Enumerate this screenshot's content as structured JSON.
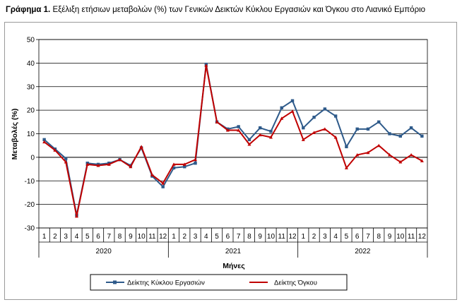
{
  "title": {
    "prefix": "Γράφημα 1.",
    "text": "Εξέλιξη ετήσιων μεταβολών (%) των Γενικών Δεικτών Κύκλου Εργασιών και Όγκου στο Λιανικό Εμπόριο"
  },
  "chart_data": {
    "type": "line",
    "ylabel": "Μεταβολές (%)",
    "xlabel": "Μήνες",
    "ylim": [
      -30,
      50
    ],
    "yticks": [
      -30,
      -20,
      -10,
      0,
      10,
      20,
      30,
      40,
      50
    ],
    "grid": true,
    "legend_position": "bottom",
    "categories": [
      "1",
      "2",
      "3",
      "4",
      "5",
      "6",
      "7",
      "8",
      "9",
      "10",
      "11",
      "12",
      "1",
      "2",
      "3",
      "4",
      "5",
      "6",
      "7",
      "8",
      "9",
      "10",
      "11",
      "12",
      "1",
      "2",
      "3",
      "4",
      "5",
      "6",
      "7",
      "8",
      "9",
      "10",
      "11",
      "12"
    ],
    "year_groups": [
      {
        "label": "2020",
        "months": 12
      },
      {
        "label": "2021",
        "months": 12
      },
      {
        "label": "2022",
        "months": 12
      }
    ],
    "series": [
      {
        "name": "Δείκτης Κύκλου Εργασιών",
        "color": "#2e5a8a",
        "marker": "square",
        "values": [
          7.5,
          3.5,
          -0.5,
          -24.5,
          -2.5,
          -3,
          -2.5,
          -1,
          -3.5,
          4,
          -8,
          -12.5,
          -4.5,
          -4,
          -2.5,
          39.5,
          15,
          12,
          13,
          7.5,
          12.5,
          11,
          21,
          24,
          12.5,
          17,
          20.5,
          17.5,
          4.5,
          12,
          12,
          15,
          10,
          9,
          12.5,
          9
        ]
      },
      {
        "name": "Δείκτης Όγκου",
        "color": "#c00000",
        "marker": "triangle",
        "values": [
          6.5,
          3,
          -2,
          -25,
          -3,
          -3.5,
          -3,
          -1,
          -4,
          4.5,
          -7.5,
          -11,
          -3,
          -3,
          -1,
          39,
          15,
          11.5,
          11.5,
          5.5,
          9.5,
          8.5,
          16.5,
          19.5,
          7.5,
          10.5,
          12,
          8.5,
          -4.5,
          1,
          2,
          5,
          1,
          -2,
          1,
          -1.5
        ]
      }
    ]
  }
}
